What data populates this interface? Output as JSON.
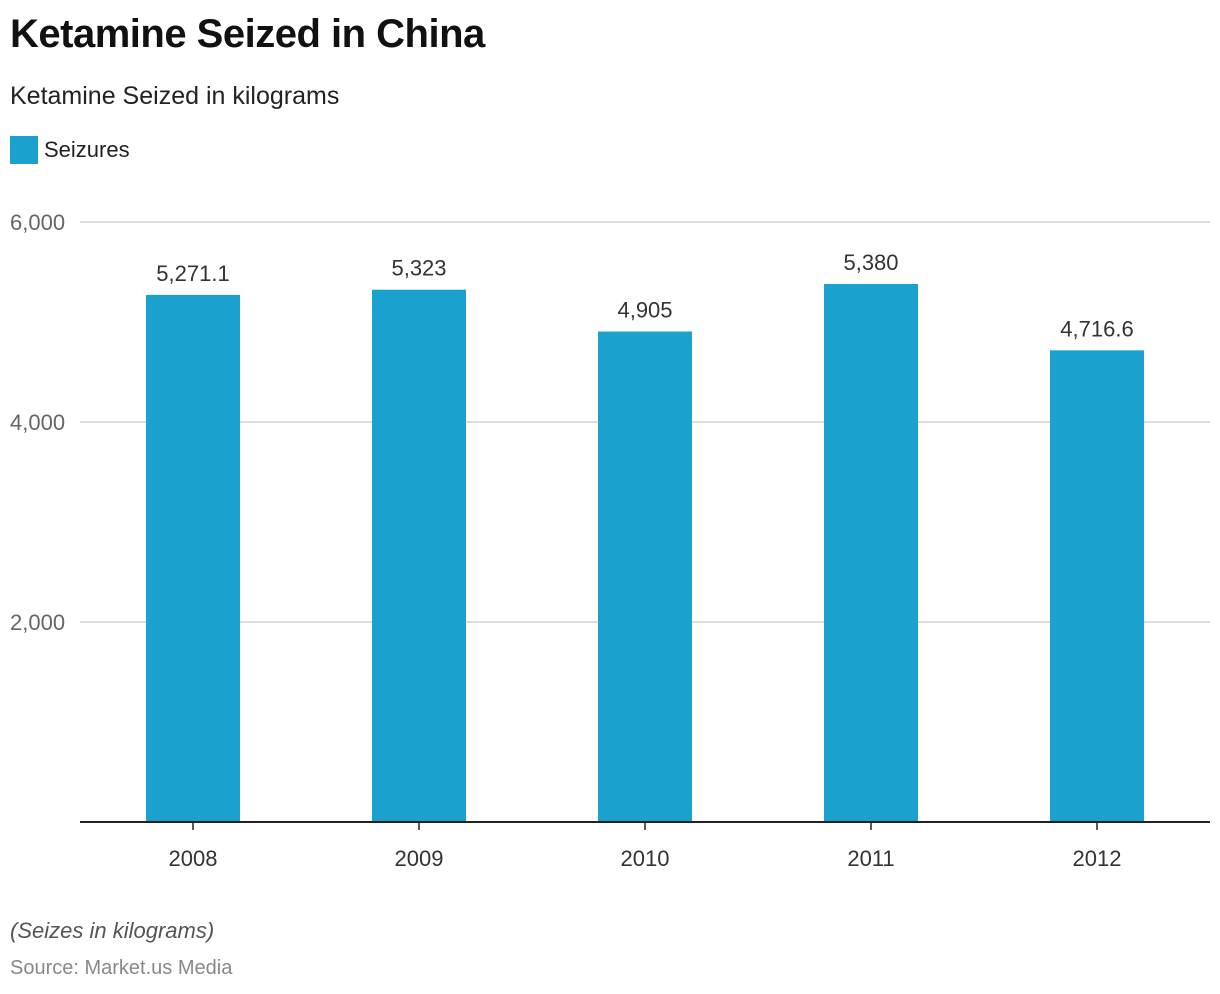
{
  "title": "Ketamine Seized in China",
  "subtitle": "Ketamine Seized in kilograms",
  "legend": {
    "label": "Seizures",
    "color": "#1aa1ce"
  },
  "note": "(Seizes in kilograms)",
  "source": "Source: Market.us Media",
  "chart_data": {
    "type": "bar",
    "title": "Ketamine Seized in China",
    "subtitle": "Ketamine Seized in kilograms",
    "xlabel": "",
    "ylabel": "",
    "categories": [
      "2008",
      "2009",
      "2010",
      "2011",
      "2012"
    ],
    "series": [
      {
        "name": "Seizures",
        "values": [
          5271.1,
          5323,
          4905,
          5380,
          4716.6
        ],
        "labels": [
          "5,271.1",
          "5,323",
          "4,905",
          "5,380",
          "4,716.6"
        ]
      }
    ],
    "ylim": [
      0,
      6000
    ],
    "yticks": [
      2000,
      4000,
      6000
    ],
    "ytick_labels": [
      "2,000",
      "4,000",
      "6,000"
    ],
    "grid": true,
    "legend_position": "top-left",
    "bar_color": "#1aa1ce"
  }
}
